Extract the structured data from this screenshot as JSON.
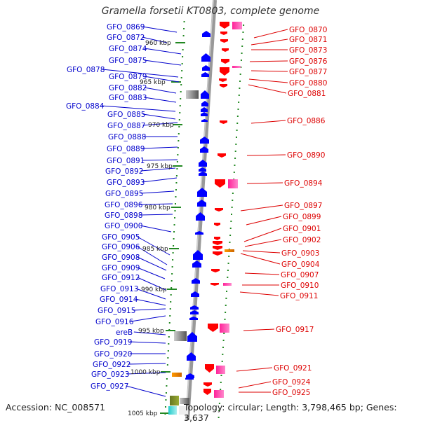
{
  "title": "Gramella forsetii KT0803, complete genome",
  "accession_label": "Accession: NC_008571",
  "summary_label": "Topology: circular; Length: 3,798,465 bp; Genes: 3,637",
  "colors": {
    "left_gene_label": "#0000cc",
    "right_gene_label": "#dd0000",
    "forward_feature": "#0000ff",
    "reverse_feature": "#ff0000",
    "tick": "#228822",
    "backbone": "#999999"
  },
  "tick_labels": [
    {
      "kbp": 960,
      "label": "960 kbp"
    },
    {
      "kbp": 965,
      "label": "965 kbp"
    },
    {
      "kbp": 970,
      "label": "970 kbp"
    },
    {
      "kbp": 975,
      "label": "975 kbp"
    },
    {
      "kbp": 980,
      "label": "980 kbp"
    },
    {
      "kbp": 985,
      "label": "985 kbp"
    },
    {
      "kbp": 990,
      "label": "990 kbp"
    },
    {
      "kbp": 995,
      "label": "995 kbp"
    },
    {
      "kbp": 1000,
      "label": "1000 kbp"
    },
    {
      "kbp": 1005,
      "label": "1005 kbp"
    }
  ],
  "left_genes": [
    "GFO_0869",
    "GFO_0872",
    "GFO_0874",
    "GFO_0875",
    "GFO_0878",
    "GFO_0879",
    "GFO_0882",
    "GFO_0883",
    "GFO_0884",
    "GFO_0885",
    "GFO_0887",
    "GFO_0888",
    "GFO_0889",
    "GFO_0891",
    "GFO_0892",
    "GFO_0893",
    "GFO_0895",
    "GFO_0896",
    "GFO_0898",
    "GFO_0900",
    "GFO_0905",
    "GFO_0906",
    "GFO_0908",
    "GFO_0909",
    "GFO_0912",
    "GFO_0913",
    "GFO_0914",
    "GFO_0915",
    "GFO_0916",
    "ereB",
    "GFO_0919",
    "GFO_0920",
    "GFO_0922",
    "GFO_0923",
    "GFO_0927"
  ],
  "right_genes": [
    "GFO_0870",
    "GFO_0871",
    "GFO_0873",
    "GFO_0876",
    "GFO_0877",
    "GFO_0880",
    "GFO_0881",
    "GFO_0886",
    "GFO_0890",
    "GFO_0894",
    "GFO_0897",
    "GFO_0899",
    "GFO_0901",
    "GFO_0902",
    "GFO_0903",
    "GFO_0904",
    "GFO_0907",
    "GFO_0910",
    "GFO_0911",
    "GFO_0917",
    "GFO_0921",
    "GFO_0924",
    "GFO_0925"
  ]
}
